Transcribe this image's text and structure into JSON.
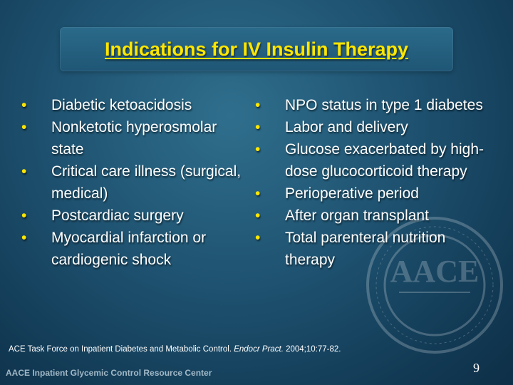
{
  "slide": {
    "title": "Indications for IV Insulin Therapy",
    "left_bullets": [
      "Diabetic ketoacidosis",
      "Nonketotic hyperosmolar state",
      "Critical care illness (surgical, medical)",
      "Postcardiac surgery",
      "Myocardial infarction or cardiogenic shock"
    ],
    "right_bullets": [
      "NPO status in type 1 diabetes",
      "Labor and delivery",
      "Glucose exacerbated by high-dose glucocorticoid therapy",
      "Perioperative period",
      "After organ transplant",
      "Total parenteral nutrition therapy"
    ],
    "citation": {
      "text": "ACE Task Force on Inpatient Diabetes and Metabolic Control.",
      "journal": "Endocr Pract.",
      "details": "2004;10:77-82."
    },
    "footer": "AACE Inpatient Glycemic Control Resource Center",
    "page_number": "9",
    "seal_text": "AACE"
  },
  "colors": {
    "title": "#ffe600",
    "bullet": "#ffe600",
    "text": "#ffffff",
    "background": "#1e5270"
  }
}
